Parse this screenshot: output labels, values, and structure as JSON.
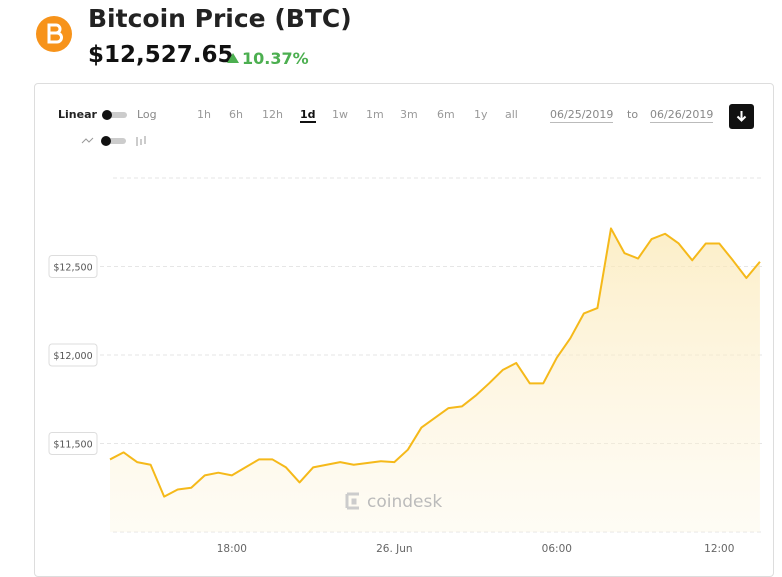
{
  "header": {
    "title": "Bitcoin Price (BTC)",
    "price": "$12,527.65",
    "change": "10.37%"
  },
  "controls": {
    "scales": [
      "Linear",
      "Log"
    ],
    "ranges": [
      "1h",
      "6h",
      "12h",
      "1d",
      "1w",
      "1m",
      "3m",
      "6m",
      "1y",
      "all"
    ],
    "active_range": "1d",
    "from": "06/25/2019",
    "separator": "to",
    "to": "06/26/2019"
  },
  "watermark": "coindesk",
  "chart_data": {
    "type": "line",
    "categories": [
      null,
      null,
      null,
      null,
      null,
      null,
      null,
      null,
      null,
      "18:00",
      null,
      null,
      null,
      null,
      null,
      null,
      null,
      null,
      null,
      null,
      null,
      "26. Jun",
      null,
      null,
      null,
      null,
      null,
      null,
      null,
      null,
      null,
      null,
      null,
      "06:00",
      null,
      null,
      null,
      null,
      null,
      null,
      null,
      null,
      null,
      null,
      null,
      "12:00",
      null,
      null,
      null
    ],
    "series": [
      {
        "name": "BTC",
        "color": "#f5b91a",
        "values": [
          11410,
          11450,
          11395,
          11380,
          11200,
          11240,
          11250,
          11320,
          11335,
          11320,
          11365,
          11410,
          11410,
          11365,
          11280,
          11365,
          11380,
          11395,
          11380,
          11390,
          11400,
          11395,
          11465,
          11590,
          11645,
          11700,
          11710,
          11770,
          11840,
          11915,
          11955,
          11840,
          11840,
          11985,
          12095,
          12235,
          12265,
          12715,
          12575,
          12545,
          12655,
          12685,
          12630,
          12535,
          12630,
          12630,
          12535,
          12435,
          12527
        ]
      }
    ],
    "ylim": [
      11000,
      13000
    ],
    "yticks": [
      {
        "value": 11500,
        "label": "$11,500"
      },
      {
        "value": 12000,
        "label": "$12,000"
      },
      {
        "value": 12500,
        "label": "$12,500"
      }
    ],
    "grid": true
  }
}
